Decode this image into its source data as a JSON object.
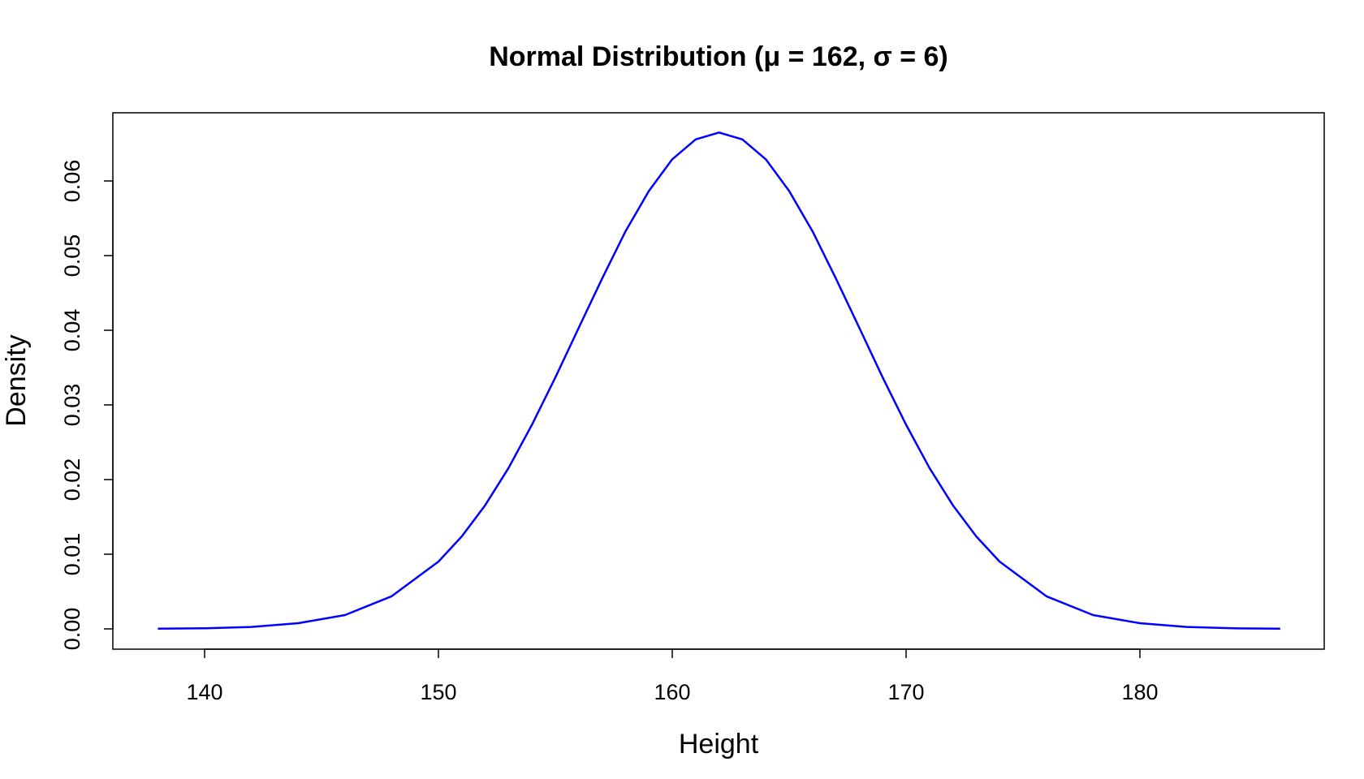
{
  "chart_data": {
    "type": "line",
    "title": "Normal Distribution (μ = 162, σ = 6)",
    "xlabel": "Height",
    "ylabel": "Density",
    "xlim": [
      138,
      186
    ],
    "ylim": [
      0,
      0.0665
    ],
    "x_ticks": [
      140,
      150,
      160,
      170,
      180
    ],
    "x_tick_labels": [
      "140",
      "150",
      "160",
      "170",
      "180"
    ],
    "y_ticks": [
      0,
      0.01,
      0.02,
      0.03,
      0.04,
      0.05,
      0.06
    ],
    "y_tick_labels": [
      "0.00",
      "0.01",
      "0.02",
      "0.03",
      "0.04",
      "0.05",
      "0.06"
    ],
    "grid": false,
    "series": [
      {
        "color": "#0000ff",
        "x": [
          138,
          140,
          142,
          144,
          146,
          148,
          150,
          151,
          152,
          153,
          154,
          155,
          156,
          157,
          158,
          159,
          160,
          161,
          162,
          163,
          164,
          165,
          166,
          167,
          168,
          169,
          170,
          171,
          172,
          173,
          174,
          176,
          178,
          180,
          182,
          184,
          186
        ],
        "values": [
          2.23e-05,
          7.89e-05,
          0.000257,
          0.000759,
          0.00185,
          0.00437,
          0.00901,
          0.01239,
          0.01657,
          0.02155,
          0.02735,
          0.03367,
          0.04033,
          0.04692,
          0.05325,
          0.05865,
          0.0629,
          0.06556,
          0.06649,
          0.06556,
          0.0629,
          0.05865,
          0.05325,
          0.04692,
          0.04033,
          0.03367,
          0.02735,
          0.02155,
          0.01657,
          0.01239,
          0.00901,
          0.00437,
          0.00185,
          0.000759,
          0.000257,
          7.89e-05,
          2.23e-05
        ]
      }
    ]
  }
}
